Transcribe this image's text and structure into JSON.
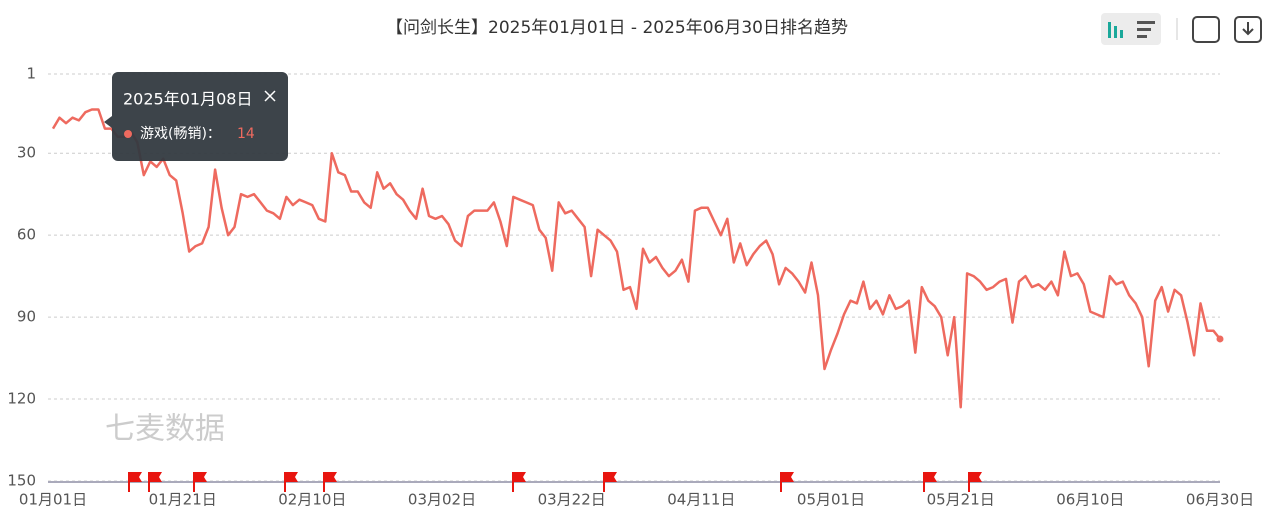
{
  "chart_data": {
    "type": "line",
    "title": "【问剑长生】2025年01月01日 - 2025年06月30日排名趋势",
    "watermark": "七麦数据",
    "categories": [
      "01月01日",
      null,
      null,
      null,
      null,
      null,
      null,
      null,
      null,
      null,
      null,
      null,
      null,
      null,
      null,
      null,
      null,
      null,
      null,
      null,
      "01月21日",
      null,
      null,
      null,
      null,
      null,
      null,
      null,
      null,
      null,
      null,
      null,
      null,
      null,
      null,
      null,
      null,
      null,
      null,
      null,
      "02月10日",
      null,
      null,
      null,
      null,
      null,
      null,
      null,
      null,
      null,
      null,
      null,
      null,
      null,
      null,
      null,
      null,
      null,
      null,
      null,
      "03月02日",
      null,
      null,
      null,
      null,
      null,
      null,
      null,
      null,
      null,
      null,
      null,
      null,
      null,
      null,
      null,
      null,
      null,
      null,
      null,
      "03月22日",
      null,
      null,
      null,
      null,
      null,
      null,
      null,
      null,
      null,
      null,
      null,
      null,
      null,
      null,
      null,
      null,
      null,
      null,
      null,
      "04月11日",
      null,
      null,
      null,
      null,
      null,
      null,
      null,
      null,
      null,
      null,
      null,
      null,
      null,
      null,
      null,
      null,
      null,
      null,
      null,
      "05月01日",
      null,
      null,
      null,
      null,
      null,
      null,
      null,
      null,
      null,
      null,
      null,
      null,
      null,
      null,
      null,
      null,
      null,
      null,
      null,
      "05月21日",
      null,
      null,
      null,
      null,
      null,
      null,
      null,
      null,
      null,
      null,
      null,
      null,
      null,
      null,
      null,
      null,
      null,
      null,
      null,
      "06月10日",
      null,
      null,
      null,
      null,
      null,
      null,
      null,
      null,
      null,
      null,
      null,
      null,
      null,
      null,
      null,
      null,
      null,
      null,
      null,
      "06月30日"
    ],
    "values": [
      21,
      17,
      19,
      17,
      18,
      15,
      14,
      14,
      21,
      21,
      24,
      24,
      22,
      26,
      38,
      33,
      35,
      32,
      38,
      40,
      52,
      66,
      64,
      63,
      57,
      36,
      50,
      60,
      57,
      45,
      46,
      45,
      48,
      51,
      52,
      54,
      46,
      49,
      47,
      48,
      49,
      54,
      55,
      30,
      37,
      38,
      44,
      44,
      48,
      50,
      37,
      43,
      41,
      45,
      47,
      51,
      54,
      43,
      53,
      54,
      53,
      56,
      62,
      64,
      53,
      51,
      51,
      51,
      48,
      55,
      64,
      46,
      47,
      48,
      49,
      58,
      61,
      73,
      48,
      52,
      51,
      54,
      57,
      75,
      58,
      60,
      62,
      66,
      80,
      79,
      87,
      65,
      70,
      68,
      72,
      75,
      73,
      69,
      77,
      51,
      50,
      50,
      55,
      60,
      54,
      70,
      63,
      71,
      67,
      64,
      62,
      67,
      78,
      72,
      74,
      77,
      81,
      70,
      82,
      109,
      102,
      96,
      89,
      84,
      85,
      77,
      87,
      84,
      89,
      82,
      87,
      86,
      84,
      103,
      79,
      84,
      86,
      90,
      104,
      90,
      123,
      74,
      75,
      77,
      80,
      79,
      77,
      76,
      92,
      77,
      75,
      79,
      78,
      80,
      77,
      82,
      66,
      75,
      74,
      78,
      88,
      89,
      90,
      75,
      78,
      77,
      82,
      85,
      90,
      108,
      84,
      79,
      88,
      80,
      82,
      92,
      104,
      85,
      95,
      95,
      98
    ],
    "color": "#ee6a5f",
    "ylim": [
      1,
      150
    ],
    "yticks": [
      1,
      30,
      60,
      90,
      120,
      150
    ],
    "inverted": true,
    "grid": true,
    "tooltip": {
      "title": "2025年01月08日",
      "label": "游戏(畅销)：",
      "value": 14
    }
  }
}
